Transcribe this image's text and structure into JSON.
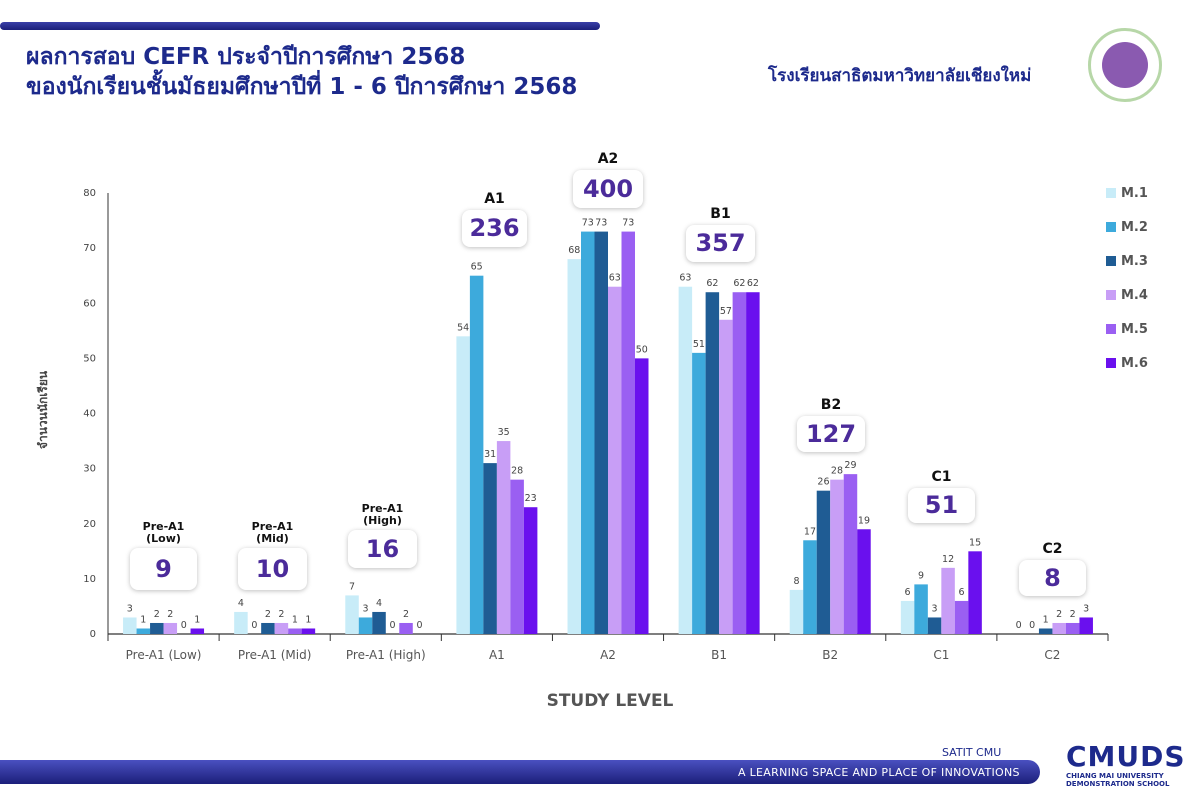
{
  "header": {
    "title_line1": "ผลการสอบ CEFR ประจำปีการศึกษา 2568",
    "title_line2": "ของนักเรียนชั้นมัธยมศึกษาปีที่ 1 - 6 ปีการศึกษา 2568",
    "school_name": "โรงเรียนสาธิตมหาวิทยาลัยเชียงใหม่"
  },
  "footer": {
    "brand_small": "SATIT CMU",
    "tagline": "A LEARNING SPACE AND PLACE OF INNOVATIONS",
    "logo_text": "CMUDS",
    "logo_sub1": "CHIANG MAI UNIVERSITY",
    "logo_sub2": "DEMONSTRATION SCHOOL"
  },
  "chart_data": {
    "type": "bar",
    "xlabel": "STUDY LEVEL",
    "ylabel": "จำนวนนักเรียน",
    "ylim": [
      0,
      80
    ],
    "yticks": [
      0,
      10,
      20,
      30,
      40,
      50,
      60,
      70,
      80
    ],
    "grid": false,
    "legend_position": "right",
    "categories": [
      "Pre-A1 (Low)",
      "Pre-A1 (Mid)",
      "Pre-A1 (High)",
      "A1",
      "A2",
      "B1",
      "B2",
      "C1",
      "C2"
    ],
    "series": [
      {
        "name": "M.1",
        "color": "#c8ecf8",
        "values": [
          3,
          4,
          7,
          54,
          68,
          63,
          8,
          6,
          0
        ]
      },
      {
        "name": "M.2",
        "color": "#3daadc",
        "values": [
          1,
          0,
          3,
          65,
          73,
          51,
          17,
          9,
          0
        ]
      },
      {
        "name": "M.3",
        "color": "#1f5c94",
        "values": [
          2,
          2,
          4,
          31,
          73,
          62,
          26,
          3,
          1
        ]
      },
      {
        "name": "M.4",
        "color": "#c89ef6",
        "values": [
          2,
          2,
          0,
          35,
          63,
          57,
          28,
          12,
          2
        ]
      },
      {
        "name": "M.5",
        "color": "#9a5ff2",
        "values": [
          0,
          1,
          2,
          28,
          73,
          62,
          29,
          6,
          2
        ]
      },
      {
        "name": "M.6",
        "color": "#6a10ee",
        "values": [
          1,
          1,
          0,
          23,
          50,
          62,
          19,
          15,
          3
        ]
      }
    ],
    "totals": [
      {
        "label_line1": "Pre-A1",
        "label_line2": "(Low)",
        "total": "9"
      },
      {
        "label_line1": "Pre-A1",
        "label_line2": "(Mid)",
        "total": "10"
      },
      {
        "label_line1": "Pre-A1",
        "label_line2": "(High)",
        "total": "16"
      },
      {
        "label_line1": "A1",
        "label_line2": "",
        "total": "236"
      },
      {
        "label_line1": "A2",
        "label_line2": "",
        "total": "400"
      },
      {
        "label_line1": "B1",
        "label_line2": "",
        "total": "357"
      },
      {
        "label_line1": "B2",
        "label_line2": "",
        "total": "127"
      },
      {
        "label_line1": "C1",
        "label_line2": "",
        "total": "51"
      },
      {
        "label_line1": "C2",
        "label_line2": "",
        "total": "8"
      }
    ]
  }
}
